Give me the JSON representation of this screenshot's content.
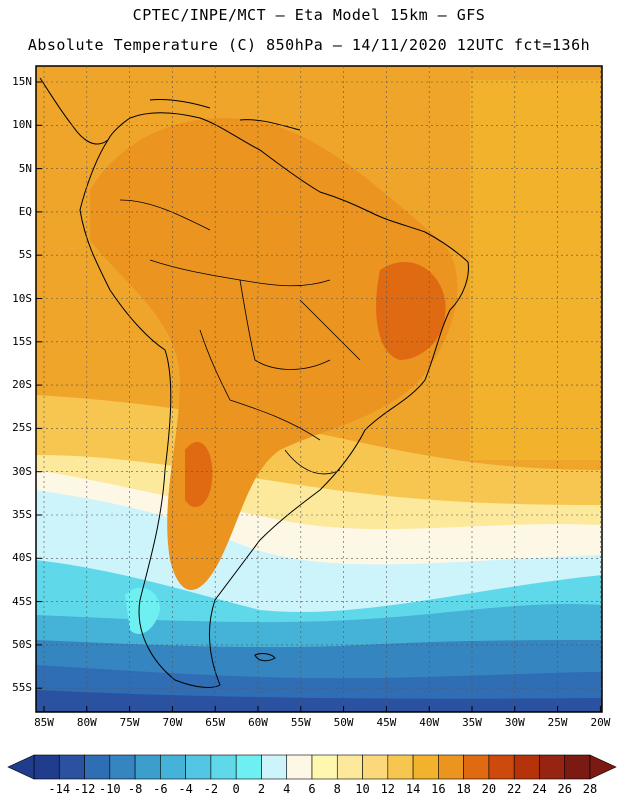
{
  "header": {
    "line1": "CPTEC/INPE/MCT –  Eta Model 15km – GFS",
    "line2": "Absolute Temperature (C) 850hPa – 14/11/2020 12UTC fct=136h"
  },
  "map": {
    "lat_labels": [
      "15N",
      "10N",
      "5N",
      "EQ",
      "5S",
      "10S",
      "15S",
      "20S",
      "25S",
      "30S",
      "35S",
      "40S",
      "45S",
      "50S",
      "55S"
    ],
    "lon_labels": [
      "85W",
      "80W",
      "75W",
      "70W",
      "65W",
      "60W",
      "55W",
      "50W",
      "45W",
      "40W",
      "35W",
      "30W",
      "25W",
      "20W"
    ]
  },
  "colorbar": {
    "labels": [
      "-14",
      "-12",
      "-10",
      "-8",
      "-6",
      "-4",
      "-2",
      "0",
      "2",
      "4",
      "6",
      "8",
      "10",
      "12",
      "14",
      "16",
      "18",
      "20",
      "22",
      "24",
      "26",
      "28"
    ],
    "colors": [
      "#1f3d8c",
      "#2a52a0",
      "#2f6db5",
      "#3585c0",
      "#3c9ecc",
      "#45b3d8",
      "#52c6e2",
      "#5fd9ea",
      "#6ef0f2",
      "#cdf3fb",
      "#fdf8e6",
      "#fef7b0",
      "#fde99b",
      "#fbd97a",
      "#f7c650",
      "#f2b22c",
      "#eb9420",
      "#e06a12",
      "#cd4a0c",
      "#b5330b",
      "#962410",
      "#7a1a12"
    ]
  }
}
